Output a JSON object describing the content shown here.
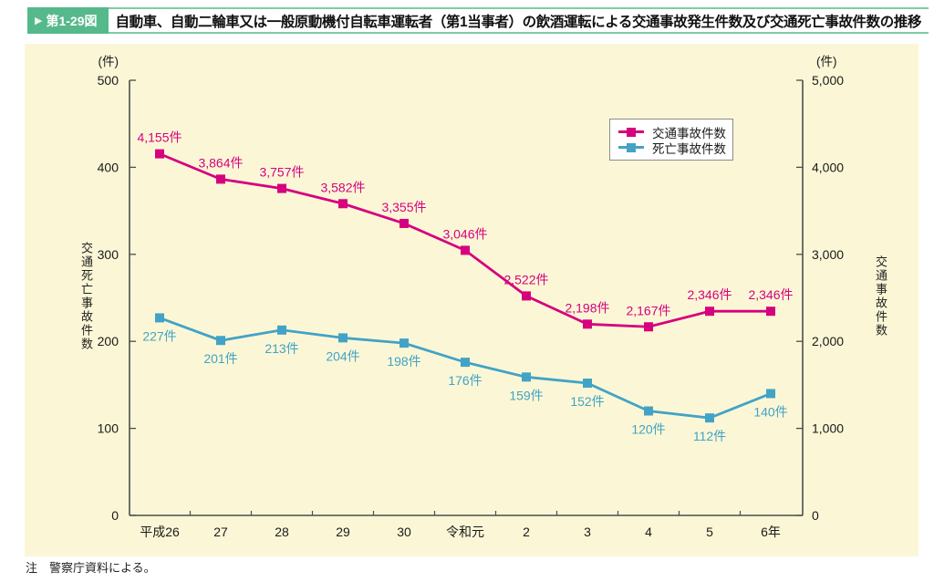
{
  "figure": {
    "label": "第1-29図",
    "title": "自動車、自動二輪車又は一般原動機付自転車運転者（第1当事者）の飲酒運転による交通事故発生件数及び交通死亡事故件数の推移",
    "note": "注　警察庁資料による。"
  },
  "colors": {
    "accident_line": "#d6017f",
    "fatal_line": "#42a3c6",
    "badge_green": "#55b98b",
    "header_border_green": "#7ecba3",
    "panel_background": "#fbf7d6",
    "axis": "#4d4d4d"
  },
  "chart_data": {
    "type": "line",
    "categories": [
      "平成26",
      "27",
      "28",
      "29",
      "30",
      "令和元",
      "2",
      "3",
      "4",
      "5",
      "6年"
    ],
    "series": [
      {
        "name": "交通事故件数",
        "axis": "right",
        "color": "#d6017f",
        "values": [
          4155,
          3864,
          3757,
          3582,
          3355,
          3046,
          2522,
          2198,
          2167,
          2346,
          2346
        ],
        "labels": [
          "4,155件",
          "3,864件",
          "3,757件",
          "3,582件",
          "3,355件",
          "3,046件",
          "2,522件",
          "2,198件",
          "2,167件",
          "2,346件",
          "2,346件"
        ],
        "label_position": "above"
      },
      {
        "name": "死亡事故件数",
        "axis": "left",
        "color": "#42a3c6",
        "values": [
          227,
          201,
          213,
          204,
          198,
          176,
          159,
          152,
          120,
          112,
          140
        ],
        "labels": [
          "227件",
          "201件",
          "213件",
          "204件",
          "198件",
          "176件",
          "159件",
          "152件",
          "120件",
          "112件",
          "140件"
        ],
        "label_position": "below"
      }
    ],
    "left_axis": {
      "unit": "(件)",
      "title": "交通死亡事故件数",
      "min": 0,
      "max": 500,
      "tick_values": [
        500,
        400,
        300,
        200,
        100,
        0
      ],
      "tick_labels": [
        "500",
        "400",
        "300",
        "200",
        "100",
        "0"
      ]
    },
    "right_axis": {
      "unit": "(件)",
      "title": "交通事故件数",
      "min": 0,
      "max": 5000,
      "tick_values": [
        5000,
        4000,
        3000,
        2000,
        1000,
        0
      ],
      "tick_labels": [
        "5,000",
        "4,000",
        "3,000",
        "2,000",
        "1,000",
        "0"
      ]
    },
    "legend": {
      "position": "top-right",
      "entries": [
        "交通事故件数",
        "死亡事故件数"
      ]
    },
    "grid": false
  }
}
